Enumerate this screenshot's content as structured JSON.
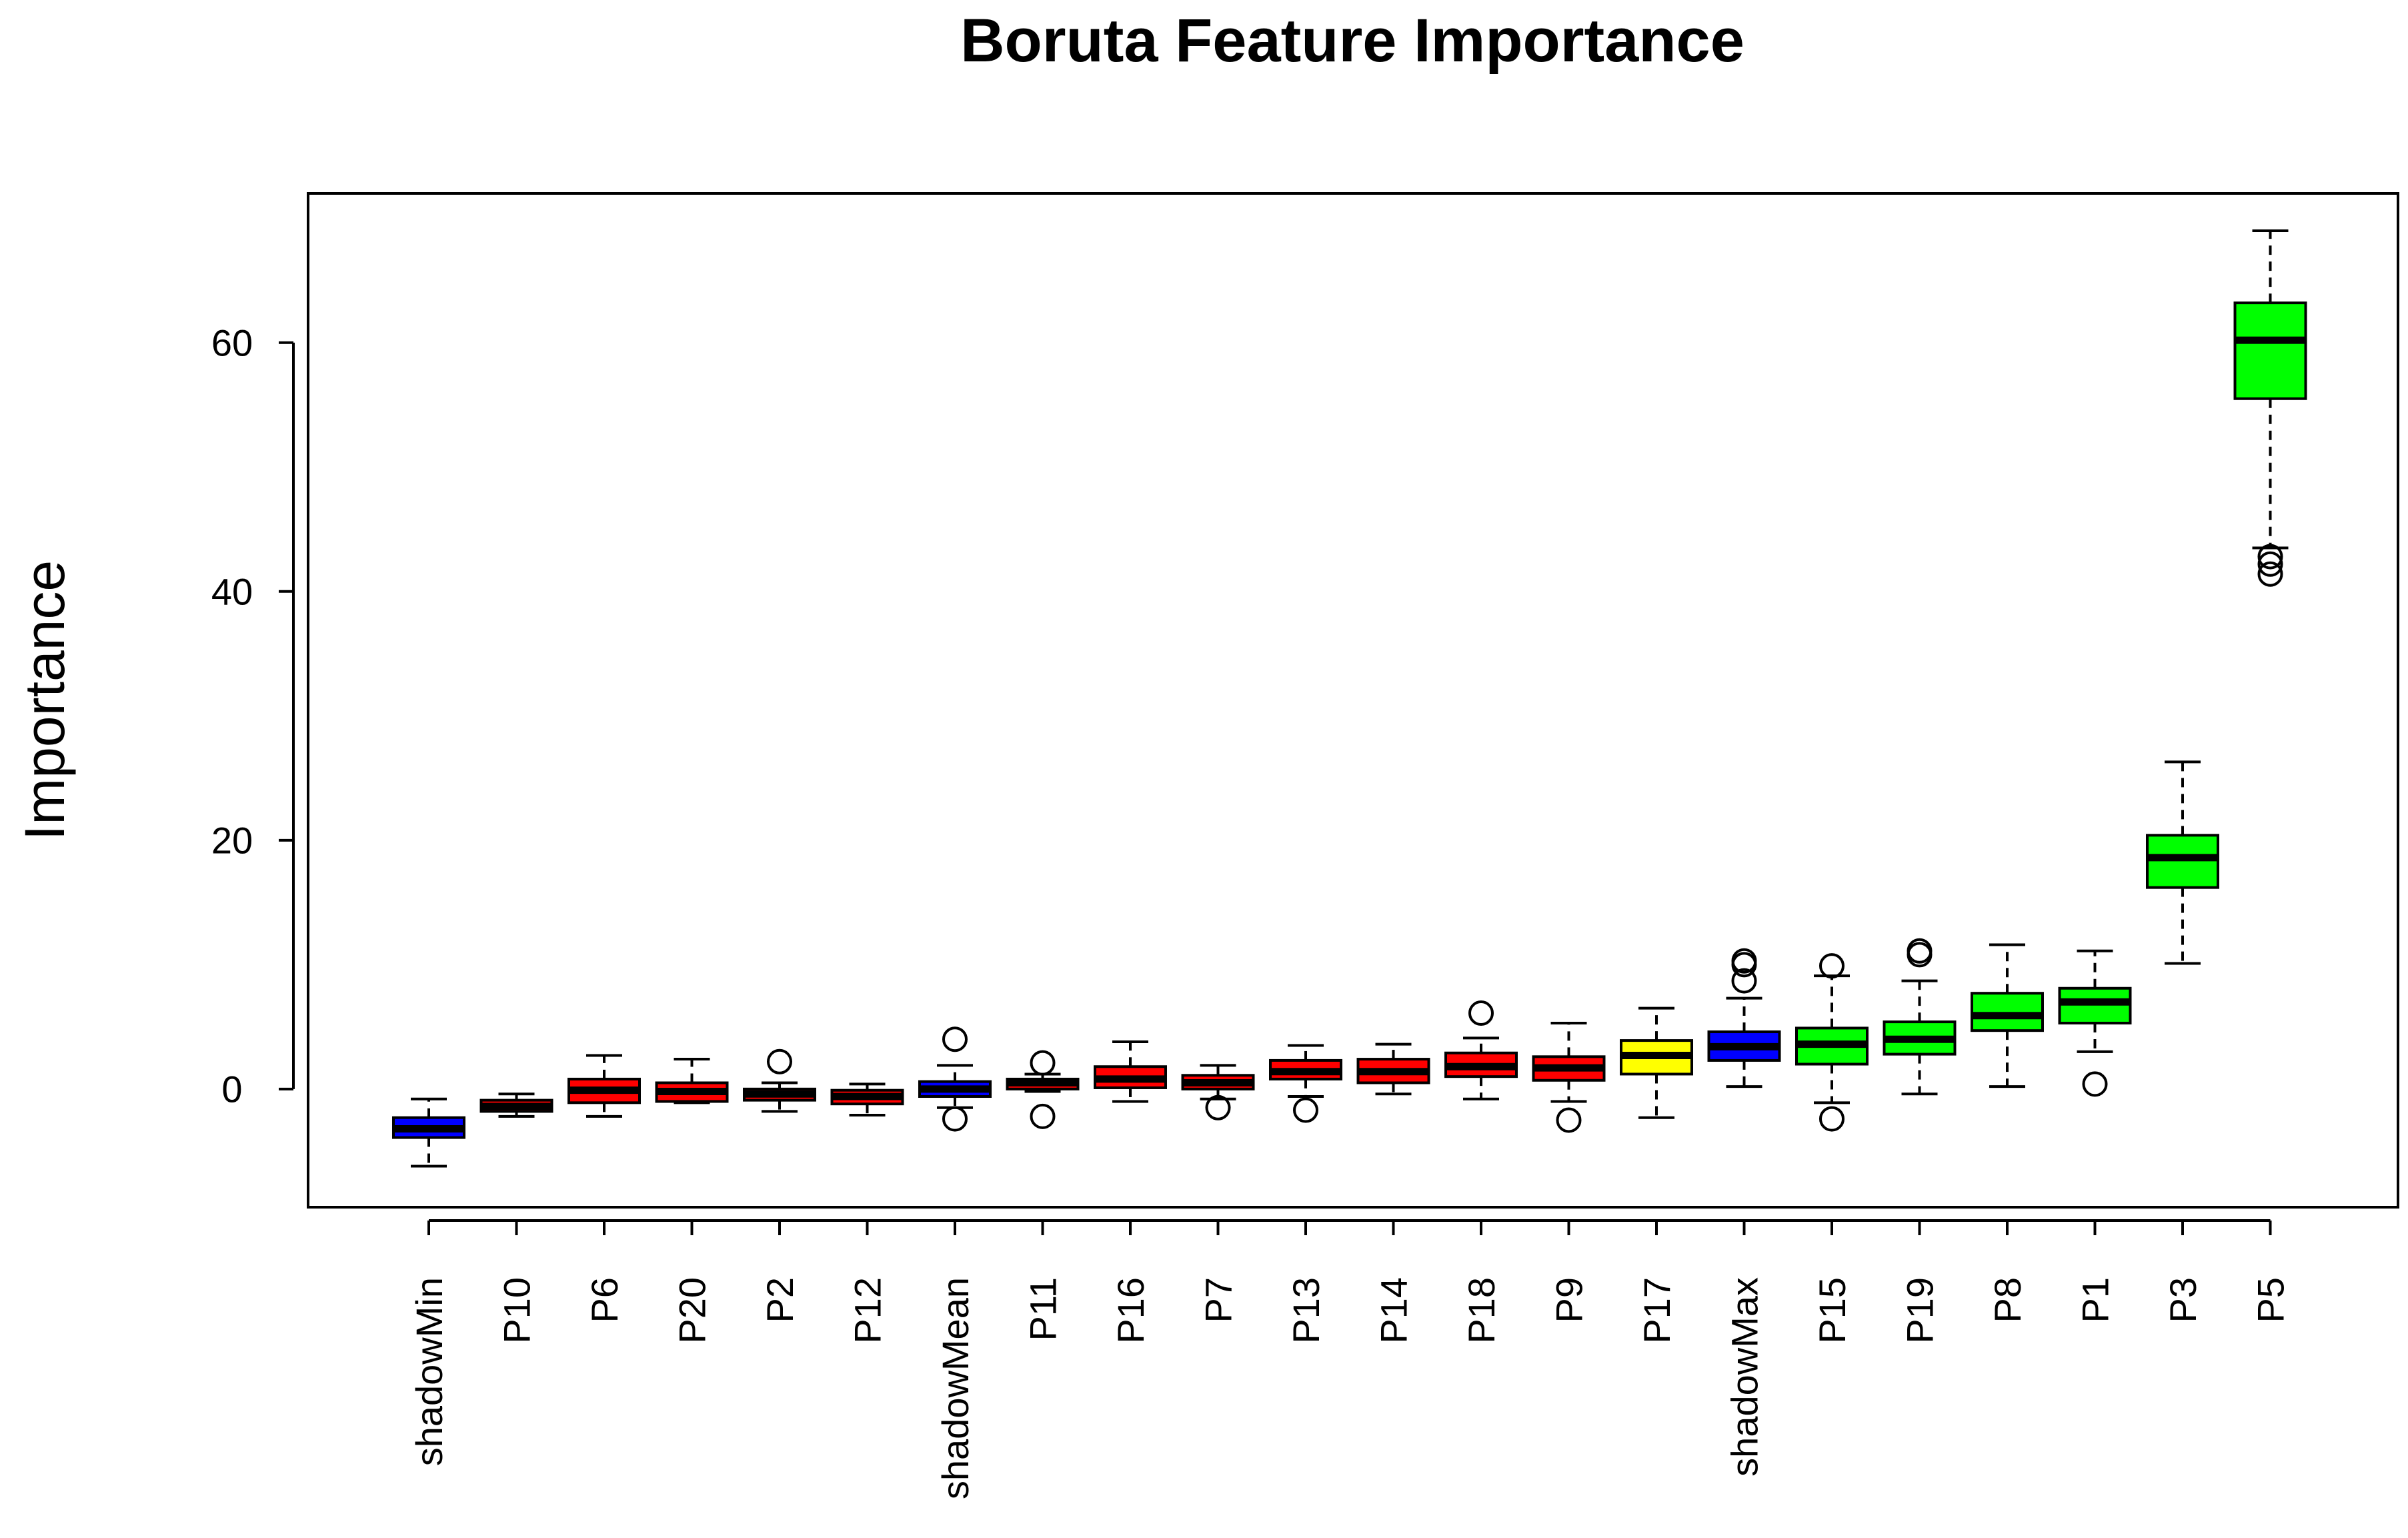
{
  "chart_data": {
    "type": "box",
    "title": "Boruta Feature Importance",
    "xlabel": "",
    "ylabel": "Importance",
    "ylim": [
      -9.5,
      72
    ],
    "yticks": [
      0,
      20,
      40,
      60
    ],
    "grid": false,
    "legend": "none",
    "colors": {
      "shadow": "#0000FF",
      "rejected": "#FF0000",
      "tentative": "#FFFF00",
      "confirmed": "#00FF00",
      "median": "#000000",
      "outline": "#000000"
    },
    "categories": [
      "shadowMin",
      "P10",
      "P6",
      "P20",
      "P2",
      "P12",
      "shadowMean",
      "P11",
      "P16",
      "P7",
      "P13",
      "P14",
      "P18",
      "P9",
      "P17",
      "shadowMax",
      "P15",
      "P19",
      "P8",
      "P1",
      "P3",
      "P5"
    ],
    "boxes": [
      {
        "name": "shadowMin",
        "status": "shadow",
        "min": -6.2,
        "q1": -3.9,
        "median": -3.2,
        "q3": -2.3,
        "max": -0.8,
        "outliers": []
      },
      {
        "name": "P10",
        "status": "rejected",
        "min": -2.2,
        "q1": -1.8,
        "median": -1.4,
        "q3": -0.9,
        "max": -0.4,
        "outliers": []
      },
      {
        "name": "P6",
        "status": "rejected",
        "min": -2.2,
        "q1": -1.1,
        "median": -0.1,
        "q3": 0.8,
        "max": 2.7,
        "outliers": []
      },
      {
        "name": "P20",
        "status": "rejected",
        "min": -1.1,
        "q1": -1.0,
        "median": -0.2,
        "q3": 0.5,
        "max": 2.4,
        "outliers": []
      },
      {
        "name": "P2",
        "status": "rejected",
        "min": -1.8,
        "q1": -0.9,
        "median": -0.4,
        "q3": 0.0,
        "max": 0.5,
        "outliers": [
          2.2
        ]
      },
      {
        "name": "P12",
        "status": "rejected",
        "min": -2.1,
        "q1": -1.2,
        "median": -0.6,
        "q3": -0.1,
        "max": 0.4,
        "outliers": []
      },
      {
        "name": "shadowMean",
        "status": "shadow",
        "min": -1.5,
        "q1": -0.6,
        "median": 0.0,
        "q3": 0.6,
        "max": 1.9,
        "outliers": [
          4.0,
          -2.4
        ]
      },
      {
        "name": "P11",
        "status": "rejected",
        "min": -0.2,
        "q1": 0.0,
        "median": 0.5,
        "q3": 0.8,
        "max": 1.2,
        "outliers": [
          2.1,
          -2.2
        ]
      },
      {
        "name": "P16",
        "status": "rejected",
        "min": -1.0,
        "q1": 0.1,
        "median": 0.8,
        "q3": 1.8,
        "max": 3.8,
        "outliers": []
      },
      {
        "name": "P7",
        "status": "rejected",
        "min": -0.8,
        "q1": 0.0,
        "median": 0.5,
        "q3": 1.1,
        "max": 1.9,
        "outliers": [
          -1.5
        ]
      },
      {
        "name": "P13",
        "status": "rejected",
        "min": -0.6,
        "q1": 0.8,
        "median": 1.4,
        "q3": 2.3,
        "max": 3.5,
        "outliers": [
          -1.7
        ]
      },
      {
        "name": "P14",
        "status": "rejected",
        "min": -0.4,
        "q1": 0.5,
        "median": 1.4,
        "q3": 2.4,
        "max": 3.6,
        "outliers": []
      },
      {
        "name": "P18",
        "status": "rejected",
        "min": -0.8,
        "q1": 1.0,
        "median": 1.8,
        "q3": 2.9,
        "max": 4.1,
        "outliers": [
          6.1
        ]
      },
      {
        "name": "P9",
        "status": "rejected",
        "min": -1.0,
        "q1": 0.7,
        "median": 1.7,
        "q3": 2.6,
        "max": 5.3,
        "outliers": [
          -2.5
        ]
      },
      {
        "name": "P17",
        "status": "tentative",
        "min": -2.3,
        "q1": 1.2,
        "median": 2.7,
        "q3": 3.9,
        "max": 6.5,
        "outliers": []
      },
      {
        "name": "shadowMax",
        "status": "shadow",
        "min": 0.2,
        "q1": 2.3,
        "median": 3.4,
        "q3": 4.6,
        "max": 7.3,
        "outliers": [
          8.7,
          10.0,
          10.3
        ]
      },
      {
        "name": "P15",
        "status": "confirmed",
        "min": -1.1,
        "q1": 2.0,
        "median": 3.6,
        "q3": 4.9,
        "max": 9.1,
        "outliers": [
          9.9,
          -2.4
        ]
      },
      {
        "name": "P19",
        "status": "confirmed",
        "min": -0.4,
        "q1": 2.8,
        "median": 4.0,
        "q3": 5.4,
        "max": 8.7,
        "outliers": [
          10.8,
          11.1
        ]
      },
      {
        "name": "P8",
        "status": "confirmed",
        "min": 0.2,
        "q1": 4.7,
        "median": 5.9,
        "q3": 7.7,
        "max": 11.6,
        "outliers": []
      },
      {
        "name": "P1",
        "status": "confirmed",
        "min": 3.0,
        "q1": 5.3,
        "median": 7.0,
        "q3": 8.1,
        "max": 11.1,
        "outliers": [
          0.4
        ]
      },
      {
        "name": "P3",
        "status": "confirmed",
        "min": 10.1,
        "q1": 16.2,
        "median": 18.6,
        "q3": 20.4,
        "max": 26.3,
        "outliers": []
      },
      {
        "name": "P5",
        "status": "confirmed",
        "min": 43.5,
        "q1": 55.5,
        "median": 60.2,
        "q3": 63.2,
        "max": 69.0,
        "outliers": [
          41.4,
          42.2,
          42.8
        ]
      }
    ]
  }
}
